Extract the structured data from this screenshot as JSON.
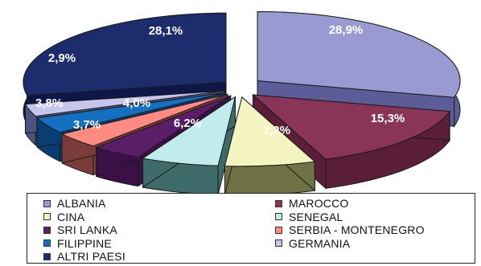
{
  "chart_data": {
    "type": "pie",
    "title": "",
    "legend_position": "bottom",
    "slices": [
      {
        "name": "ALBANIA",
        "value": 28.9,
        "label": "28,9%",
        "color": "#9a9ad2",
        "side": "#5c5c98"
      },
      {
        "name": "MAROCCO",
        "value": 15.3,
        "label": "15,3%",
        "color": "#8a3458",
        "side": "#5a1e38"
      },
      {
        "name": "CINA",
        "value": 7.2,
        "label": "7,2%",
        "color": "#f4f4c0",
        "side": "#6e7244"
      },
      {
        "name": "SENEGAL",
        "value": 6.2,
        "label": "6,2%",
        "color": "#c2ecec",
        "side": "#3e6a6a"
      },
      {
        "name": "SRI LANKA",
        "value": 4.0,
        "label": "4,0%",
        "color": "#5a1e68",
        "side": "#3a1046"
      },
      {
        "name": "SERBIA - MONTENEGRO",
        "value": 3.7,
        "label": "3,7%",
        "color": "#ff8a82",
        "side": "#7a3c38"
      },
      {
        "name": "FILIPPINE",
        "value": 3.8,
        "label": "3,8%",
        "color": "#1470c0",
        "side": "#0a3e72"
      },
      {
        "name": "GERMANIA",
        "value": 2.9,
        "label": "2,9%",
        "color": "#c6c6ec",
        "side": "#50527e"
      },
      {
        "name": "ALTRI PAESI",
        "value": 28.1,
        "label": "28,1%",
        "color": "#1c2c6c",
        "side": "#0e1848"
      }
    ]
  }
}
